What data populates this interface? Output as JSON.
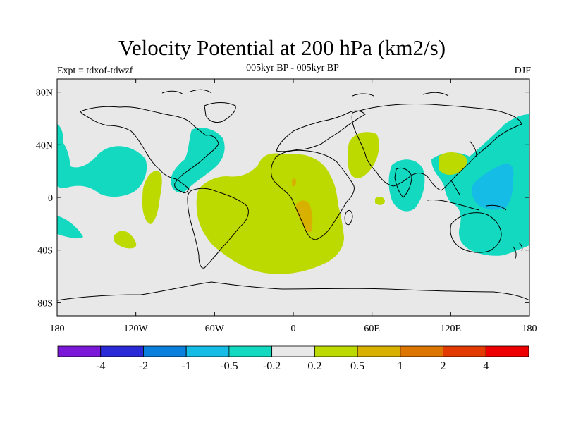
{
  "title": "Velocity Potential at 200 hPa (km2/s)",
  "subtitle": "005kyr BP - 005kyr BP",
  "left_label": "Expt = tdxof-tdwzf",
  "right_label": "DJF",
  "map": {
    "projection": "cylindrical-equidistant",
    "lon_range": [
      -180,
      180
    ],
    "lat_range": [
      -90,
      90
    ],
    "ocean_land_color": "#e8e8e8",
    "coastline_color": "#000000"
  },
  "x_ticks": [
    "180",
    "120W",
    "60W",
    "0",
    "60E",
    "120E",
    "180"
  ],
  "y_ticks": [
    "80N",
    "40N",
    "0",
    "40S",
    "80S"
  ],
  "colorbar": {
    "colors": [
      "#7b17d6",
      "#2a2ad6",
      "#0a7fdc",
      "#14bce6",
      "#12d9bf",
      "#e8e8e8",
      "#bcd900",
      "#d8b000",
      "#dd7600",
      "#e23a00",
      "#ee0000"
    ],
    "labels": [
      "-4",
      "-2",
      "-1",
      "-0.5",
      "-0.2",
      "0.2",
      "0.5",
      "1",
      "2",
      "4"
    ]
  },
  "fill_colors": {
    "neg_weak": "#12d9bf",
    "neg_mid": "#14bce6",
    "pos_weak": "#bcd900",
    "pos_mid": "#d8b000"
  }
}
